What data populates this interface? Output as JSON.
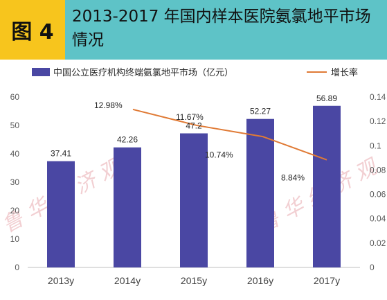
{
  "header": {
    "badge": "图 4",
    "title": "2013-2017 年国内样本医院氨氯地平市场情况"
  },
  "watermark": {
    "text": "鲁 华 经 济 观"
  },
  "colors": {
    "bar": "#4a47a3",
    "line": "#e07a35",
    "header": "#5ec3c7",
    "badge": "#f7c51d"
  },
  "chart_data": {
    "type": "bar",
    "categories": [
      "2013y",
      "2014y",
      "2015y",
      "2016y",
      "2017y"
    ],
    "series": [
      {
        "name": "中国公立医疗机构终端氨氯地平市场（亿元）",
        "type": "bar",
        "axis": "left",
        "values": [
          37.41,
          42.26,
          47.2,
          52.27,
          56.89
        ],
        "labels": [
          "37.41",
          "42.26",
          "47.2",
          "52.27",
          "56.89"
        ]
      },
      {
        "name": "增长率",
        "type": "line",
        "axis": "right",
        "values": [
          null,
          0.1298,
          0.1167,
          0.1074,
          0.0884
        ],
        "labels": [
          "",
          "12.98%",
          "11.67%",
          "10.74%",
          "8.84%"
        ]
      }
    ],
    "y_left": {
      "min": 0,
      "max": 60,
      "ticks": [
        "0",
        "10",
        "20",
        "30",
        "40",
        "50",
        "60"
      ]
    },
    "y_right": {
      "min": 0,
      "max": 0.14,
      "ticks": [
        "0",
        "0.02",
        "0.04",
        "0.06",
        "0.08",
        "0.1",
        "0.12",
        "0.14"
      ]
    },
    "legend_position": "top",
    "grid": false
  }
}
